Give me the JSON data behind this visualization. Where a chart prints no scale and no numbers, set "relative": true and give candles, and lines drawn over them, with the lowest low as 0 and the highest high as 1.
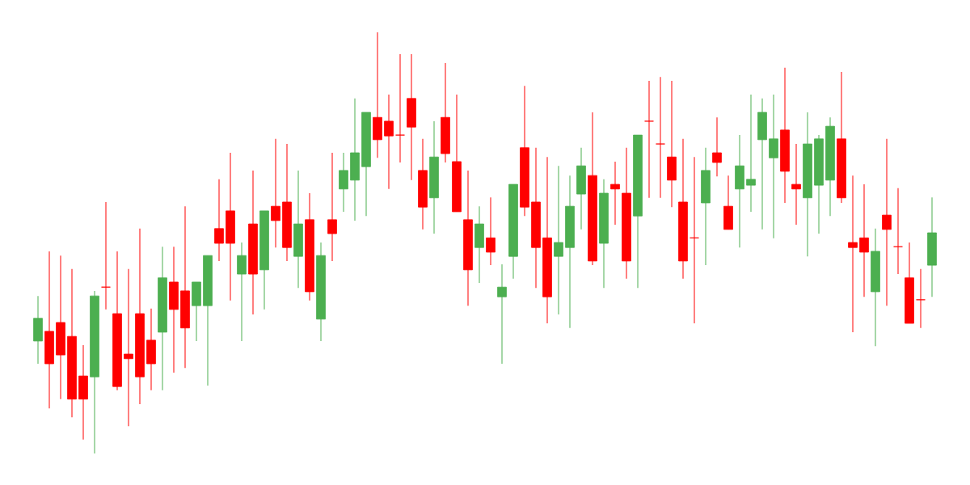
{
  "chart_data": {
    "type": "candlestick",
    "relative": true,
    "categories": [
      null,
      null,
      null,
      null,
      null,
      null,
      null,
      null,
      null,
      null,
      null,
      null,
      null,
      null,
      null,
      null,
      null,
      null,
      null,
      null,
      null,
      null,
      null,
      null,
      null,
      null,
      null,
      null,
      null,
      null,
      null,
      null,
      null,
      null,
      null,
      null,
      null,
      null,
      null,
      null,
      null,
      null,
      null,
      null,
      null,
      null,
      null,
      null,
      null,
      null,
      null,
      null,
      null,
      null,
      null,
      null,
      null,
      null,
      null,
      null,
      null,
      null,
      null,
      null,
      null,
      null,
      null,
      null,
      null,
      null,
      null,
      null,
      null,
      null,
      null,
      null,
      null,
      null,
      null,
      null
    ],
    "ohlc": [
      [
        0.267,
        0.374,
        0.213,
        0.321
      ],
      [
        0.29,
        0.48,
        0.107,
        0.213
      ],
      [
        0.311,
        0.47,
        0.129,
        0.234
      ],
      [
        0.278,
        0.438,
        0.086,
        0.129
      ],
      [
        0.184,
        0.257,
        0.033,
        0.129
      ],
      [
        0.182,
        0.386,
        0,
        0.374
      ],
      [
        0.395,
        0.597,
        0.342,
        0.395
      ],
      [
        0.332,
        0.48,
        0.15,
        0.159
      ],
      [
        0.236,
        0.438,
        0.065,
        0.225
      ],
      [
        0.332,
        0.534,
        0.117,
        0.182
      ],
      [
        0.269,
        0.344,
        0.15,
        0.213
      ],
      [
        0.288,
        0.491,
        0.15,
        0.417
      ],
      [
        0.407,
        0.491,
        0.192,
        0.342
      ],
      [
        0.386,
        0.587,
        0.203,
        0.298
      ],
      [
        0.351,
        0.407,
        0.267,
        0.407
      ],
      [
        0.351,
        0.47,
        0.161,
        0.47
      ],
      [
        0.534,
        0.651,
        0.457,
        0.499
      ],
      [
        0.576,
        0.714,
        0.363,
        0.499
      ],
      [
        0.426,
        0.501,
        0.267,
        0.47
      ],
      [
        0.545,
        0.672,
        0.33,
        0.426
      ],
      [
        0.436,
        0.576,
        0.342,
        0.576
      ],
      [
        0.587,
        0.747,
        0.489,
        0.553
      ],
      [
        0.597,
        0.735,
        0.457,
        0.489
      ],
      [
        0.468,
        0.672,
        0.393,
        0.545
      ],
      [
        0.555,
        0.618,
        0.363,
        0.384
      ],
      [
        0.319,
        0.501,
        0.267,
        0.47
      ],
      [
        0.555,
        0.714,
        0.457,
        0.522
      ],
      [
        0.628,
        0.714,
        0.574,
        0.672
      ],
      [
        0.649,
        0.843,
        0.553,
        0.714
      ],
      [
        0.681,
        0.81,
        0.564,
        0.81
      ],
      [
        0.798,
        1,
        0.702,
        0.745
      ],
      [
        0.789,
        0.852,
        0.628,
        0.754
      ],
      [
        0.756,
        0.948,
        0.691,
        0.756
      ],
      [
        0.843,
        0.948,
        0.649,
        0.775
      ],
      [
        0.672,
        0.747,
        0.532,
        0.585
      ],
      [
        0.607,
        0.789,
        0.522,
        0.704
      ],
      [
        0.798,
        0.927,
        0.691,
        0.712
      ],
      [
        0.693,
        0.852,
        0.574,
        0.574
      ],
      [
        0.555,
        0.672,
        0.351,
        0.436
      ],
      [
        0.489,
        0.587,
        0.405,
        0.545
      ],
      [
        0.512,
        0.608,
        0.447,
        0.478
      ],
      [
        0.372,
        0.449,
        0.213,
        0.395
      ],
      [
        0.468,
        0.639,
        0.415,
        0.639
      ],
      [
        0.726,
        0.873,
        0.564,
        0.585
      ],
      [
        0.597,
        0.726,
        0.393,
        0.489
      ],
      [
        0.512,
        0.704,
        0.309,
        0.372
      ],
      [
        0.468,
        0.683,
        0.33,
        0.501
      ],
      [
        0.489,
        0.66,
        0.298,
        0.587
      ],
      [
        0.616,
        0.726,
        0.532,
        0.683
      ],
      [
        0.66,
        0.81,
        0.447,
        0.457
      ],
      [
        0.499,
        0.651,
        0.393,
        0.618
      ],
      [
        0.639,
        0.693,
        0.543,
        0.628
      ],
      [
        0.618,
        0.726,
        0.415,
        0.457
      ],
      [
        0.564,
        0.756,
        0.393,
        0.756
      ],
      [
        0.789,
        0.885,
        0.607,
        0.789
      ],
      [
        0.735,
        0.894,
        0.607,
        0.735
      ],
      [
        0.704,
        0.885,
        0.585,
        0.649
      ],
      [
        0.597,
        0.747,
        0.415,
        0.457
      ],
      [
        0.512,
        0.704,
        0.309,
        0.512
      ],
      [
        0.595,
        0.726,
        0.447,
        0.672
      ],
      [
        0.714,
        0.798,
        0.658,
        0.691
      ],
      [
        0.587,
        0.66,
        0.532,
        0.532
      ],
      [
        0.628,
        0.756,
        0.489,
        0.683
      ],
      [
        0.637,
        0.852,
        0.574,
        0.651
      ],
      [
        0.745,
        0.843,
        0.532,
        0.81
      ],
      [
        0.702,
        0.852,
        0.511,
        0.747
      ],
      [
        0.768,
        0.916,
        0.595,
        0.67
      ],
      [
        0.639,
        0.735,
        0.543,
        0.628
      ],
      [
        0.607,
        0.81,
        0.468,
        0.735
      ],
      [
        0.637,
        0.756,
        0.522,
        0.747
      ],
      [
        0.649,
        0.798,
        0.564,
        0.777
      ],
      [
        0.747,
        0.906,
        0.595,
        0.607
      ],
      [
        0.501,
        0.66,
        0.288,
        0.489
      ],
      [
        0.512,
        0.639,
        0.372,
        0.478
      ],
      [
        0.384,
        0.534,
        0.255,
        0.48
      ],
      [
        0.566,
        0.747,
        0.351,
        0.532
      ],
      [
        0.491,
        0.63,
        0.426,
        0.491
      ],
      [
        0.417,
        0.501,
        0.309,
        0.309
      ],
      [
        0.365,
        0.438,
        0.298,
        0.365
      ],
      [
        0.447,
        0.608,
        0.372,
        0.524
      ]
    ],
    "colors": [
      "#4caf50",
      "#ff0000",
      "#ff0000",
      "#ff0000",
      "#ff0000",
      "#4caf50",
      "#ff0000",
      "#ff0000",
      "#ff0000",
      "#ff0000",
      "#ff0000",
      "#4caf50",
      "#ff0000",
      "#ff0000",
      "#4caf50",
      "#4caf50",
      "#ff0000",
      "#ff0000",
      "#4caf50",
      "#ff0000",
      "#4caf50",
      "#ff0000",
      "#ff0000",
      "#4caf50",
      "#ff0000",
      "#4caf50",
      "#ff0000",
      "#4caf50",
      "#4caf50",
      "#4caf50",
      "#ff0000",
      "#ff0000",
      "#ff0000",
      "#ff0000",
      "#ff0000",
      "#4caf50",
      "#ff0000",
      "#ff0000",
      "#ff0000",
      "#4caf50",
      "#ff0000",
      "#4caf50",
      "#4caf50",
      "#ff0000",
      "#ff0000",
      "#ff0000",
      "#4caf50",
      "#4caf50",
      "#4caf50",
      "#ff0000",
      "#4caf50",
      "#ff0000",
      "#ff0000",
      "#4caf50",
      "#ff0000",
      "#ff0000",
      "#ff0000",
      "#ff0000",
      "#ff0000",
      "#4caf50",
      "#ff0000",
      "#ff0000",
      "#4caf50",
      "#4caf50",
      "#4caf50",
      "#4caf50",
      "#ff0000",
      "#ff0000",
      "#4caf50",
      "#4caf50",
      "#4caf50",
      "#ff0000",
      "#ff0000",
      "#ff0000",
      "#4caf50",
      "#ff0000",
      "#ff0000",
      "#ff0000",
      "#ff0000",
      "#4caf50"
    ]
  }
}
